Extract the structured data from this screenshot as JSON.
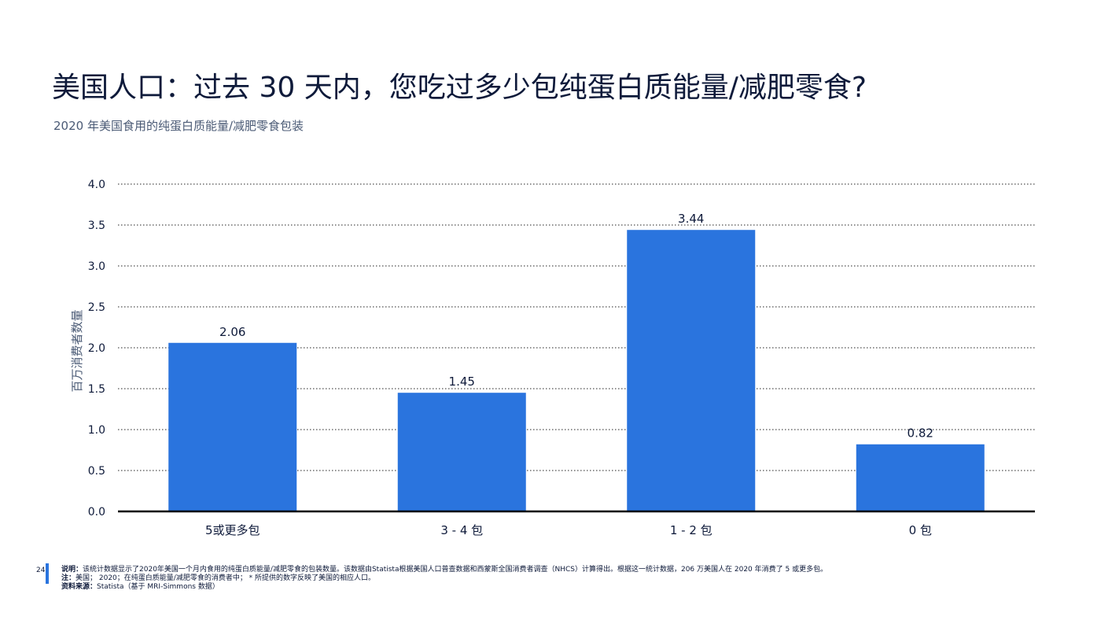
{
  "title": "美国人口：过去 30 天内，您吃过多少包纯蛋白质能量/减肥零食?",
  "subtitle": "2020 年美国食用的纯蛋白质能量/减肥零食包装",
  "chart_data": {
    "type": "bar",
    "categories": [
      "5或更多包",
      "3 - 4 包",
      "1 - 2 包",
      "0 包"
    ],
    "values": [
      2.06,
      1.45,
      3.44,
      0.82
    ],
    "value_labels": [
      "2.06",
      "1.45",
      "3.44",
      "0.82"
    ],
    "ylabel": "百万消费者数量",
    "ylim": [
      0,
      4.0
    ],
    "yticks": [
      0.0,
      0.5,
      1.0,
      1.5,
      2.0,
      2.5,
      3.0,
      3.5,
      4.0
    ],
    "ytick_labels": [
      "0.0",
      "0.5",
      "1.0",
      "1.5",
      "2.0",
      "2.5",
      "3.0",
      "3.5",
      "4.0"
    ],
    "grid": true,
    "bar_color": "#2a74de"
  },
  "footer": {
    "page_number": "24",
    "description_label": "说明：",
    "description": "该统计数据显示了2020年美国一个月内食用的纯蛋白质能量/减肥零食的包装数量。该数据由Statista根据美国人口普查数据和西蒙斯全国消费者调查（NHCS）计算得出。根据这一统计数据，206 万美国人在 2020 年消费了 5 或更多包。",
    "note_label": "注：",
    "note": "美国；  2020；在纯蛋白质能量/减肥零食的消费者中；  * 所提供的数字反映了美国的相应人口。",
    "source_label": "资料来源：",
    "source": "Statista（基于 MRI-Simmons 数据）"
  }
}
